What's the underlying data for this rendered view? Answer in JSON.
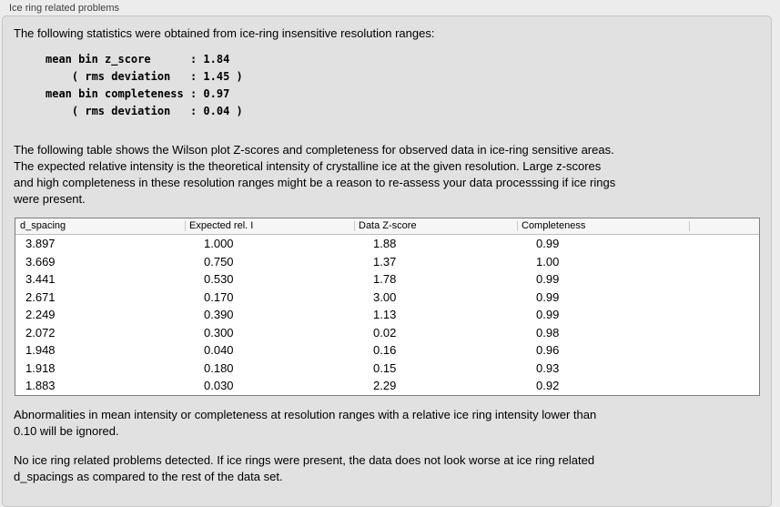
{
  "panel": {
    "title": "Ice ring related problems",
    "intro": "The following statistics were obtained from ice-ring insensitive resolution ranges:",
    "stats_block": "mean bin z_score      : 1.84\n    ( rms deviation   : 1.45 )\nmean bin completeness : 0.97\n    ( rms deviation   : 0.04 )",
    "stats": {
      "mean_bin_z_score": "1.84",
      "z_score_rms_deviation": "1.45",
      "mean_bin_completeness": "0.97",
      "completeness_rms_deviation": "0.04"
    },
    "table_description": "The following table shows the Wilson plot Z-scores and completeness for observed data in ice-ring sensitive areas.\nThe expected relative intensity is the theoretical intensity of crystalline ice at the given resolution. Large z-scores\nand high completeness in these resolution ranges might be a reason to re-assess your data processsing if ice rings\nwere present.",
    "note_ignore": "Abnormalities in mean intensity or completeness at resolution ranges with a relative ice ring intensity lower than\n0.10 will be ignored.",
    "conclusion": "No ice ring related problems detected. If ice rings were present, the data does not look worse at ice ring related\nd_spacings as compared to the rest of the data set."
  },
  "table": {
    "columns": [
      "d_spacing",
      "Expected rel. I",
      "Data Z-score",
      "Completeness"
    ],
    "rows": [
      [
        "3.897",
        "1.000",
        "1.88",
        "0.99"
      ],
      [
        "3.669",
        "0.750",
        "1.37",
        "1.00"
      ],
      [
        "3.441",
        "0.530",
        "1.78",
        "0.99"
      ],
      [
        "2.671",
        "0.170",
        "3.00",
        "0.99"
      ],
      [
        "2.249",
        "0.390",
        "1.13",
        "0.99"
      ],
      [
        "2.072",
        "0.300",
        "0.02",
        "0.98"
      ],
      [
        "1.948",
        "0.040",
        "0.16",
        "0.96"
      ],
      [
        "1.918",
        "0.180",
        "0.15",
        "0.93"
      ],
      [
        "1.883",
        "0.030",
        "2.29",
        "0.92"
      ]
    ]
  },
  "colors": {
    "window_background": "#ececec",
    "panel_background": "#e1e1e1",
    "panel_border": "#c6c6c6",
    "table_background": "#ffffff",
    "table_border": "#7d7d7d",
    "table_header_background": "#f6f6f6",
    "text": "#000000",
    "title_text": "#3e3e3e"
  }
}
